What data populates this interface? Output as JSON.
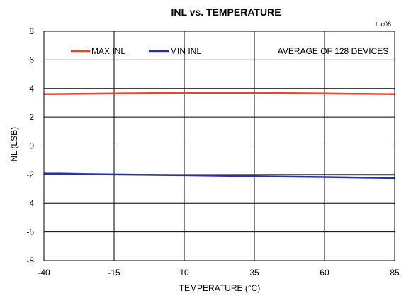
{
  "chart_data": {
    "type": "line",
    "title": "INL vs. TEMPERATURE",
    "figure_id": "toc06",
    "xlabel": "TEMPERATURE (°C)",
    "ylabel": "INL (LSB)",
    "annotation": "AVERAGE OF 128 DEVICES",
    "xlim": [
      -40,
      85
    ],
    "ylim": [
      -8,
      8
    ],
    "x_ticks": [
      -40,
      -15,
      10,
      35,
      60,
      85
    ],
    "y_ticks": [
      -8,
      -6,
      -4,
      -2,
      0,
      2,
      4,
      6,
      8
    ],
    "grid": true,
    "legend_position": "top-left",
    "x": [
      -40,
      -15,
      10,
      35,
      60,
      85
    ],
    "series": [
      {
        "name": "MAX INL",
        "color": "#e8452c",
        "values": [
          3.6,
          3.65,
          3.7,
          3.7,
          3.65,
          3.6
        ]
      },
      {
        "name": "MIN INL",
        "color": "#2b2fa8",
        "values": [
          -1.95,
          -2.0,
          -2.05,
          -2.12,
          -2.18,
          -2.25
        ]
      },
      {
        "name": "",
        "color": "#999999",
        "values": [
          -1.85,
          -2.0,
          -2.02,
          -2.03,
          -2.04,
          -2.05
        ]
      }
    ]
  }
}
